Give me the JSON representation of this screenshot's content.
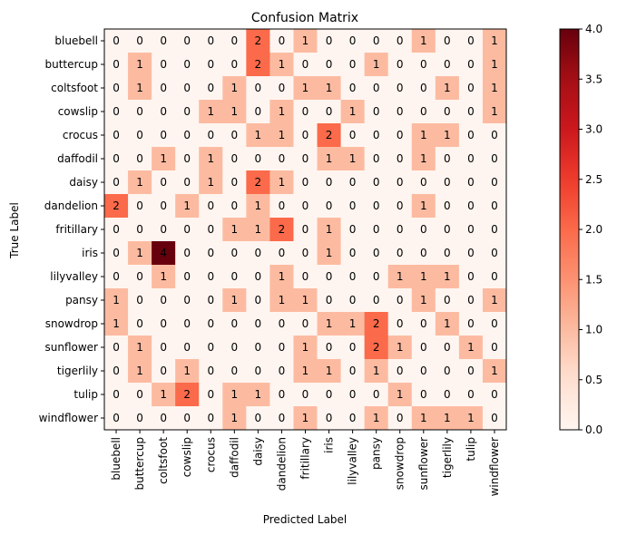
{
  "chart_data": {
    "type": "heatmap",
    "title": "Confusion Matrix",
    "xlabel": "Predicted Label",
    "ylabel": "True Label",
    "x_categories": [
      "bluebell",
      "buttercup",
      "coltsfoot",
      "cowslip",
      "crocus",
      "daffodil",
      "daisy",
      "dandelion",
      "fritillary",
      "iris",
      "lilyvalley",
      "pansy",
      "snowdrop",
      "sunflower",
      "tigerlily",
      "tulip",
      "windflower"
    ],
    "y_categories": [
      "bluebell",
      "buttercup",
      "coltsfoot",
      "cowslip",
      "crocus",
      "daffodil",
      "daisy",
      "dandelion",
      "fritillary",
      "iris",
      "lilyvalley",
      "pansy",
      "snowdrop",
      "sunflower",
      "tigerlily",
      "tulip",
      "windflower"
    ],
    "matrix": [
      [
        0,
        0,
        0,
        0,
        0,
        0,
        2,
        0,
        1,
        0,
        0,
        0,
        0,
        1,
        0,
        0,
        1
      ],
      [
        0,
        1,
        0,
        0,
        0,
        0,
        2,
        1,
        0,
        0,
        0,
        1,
        0,
        0,
        0,
        0,
        1
      ],
      [
        0,
        1,
        0,
        0,
        0,
        1,
        0,
        0,
        1,
        1,
        0,
        0,
        0,
        0,
        1,
        0,
        1
      ],
      [
        0,
        0,
        0,
        0,
        1,
        1,
        0,
        1,
        0,
        0,
        1,
        0,
        0,
        0,
        0,
        0,
        1
      ],
      [
        0,
        0,
        0,
        0,
        0,
        0,
        1,
        1,
        0,
        2,
        0,
        0,
        0,
        1,
        1,
        0,
        0
      ],
      [
        0,
        0,
        1,
        0,
        1,
        0,
        0,
        0,
        0,
        1,
        1,
        0,
        0,
        1,
        0,
        0,
        0
      ],
      [
        0,
        1,
        0,
        0,
        1,
        0,
        2,
        1,
        0,
        0,
        0,
        0,
        0,
        0,
        0,
        0,
        0
      ],
      [
        2,
        0,
        0,
        1,
        0,
        0,
        1,
        0,
        0,
        0,
        0,
        0,
        0,
        1,
        0,
        0,
        0
      ],
      [
        0,
        0,
        0,
        0,
        0,
        1,
        1,
        2,
        0,
        1,
        0,
        0,
        0,
        0,
        0,
        0,
        0
      ],
      [
        0,
        1,
        4,
        0,
        0,
        0,
        0,
        0,
        0,
        1,
        0,
        0,
        0,
        0,
        0,
        0,
        0
      ],
      [
        0,
        0,
        1,
        0,
        0,
        0,
        0,
        1,
        0,
        0,
        0,
        0,
        1,
        1,
        1,
        0,
        0
      ],
      [
        1,
        0,
        0,
        0,
        0,
        1,
        0,
        1,
        1,
        0,
        0,
        0,
        0,
        1,
        0,
        0,
        1
      ],
      [
        1,
        0,
        0,
        0,
        0,
        0,
        0,
        0,
        0,
        1,
        1,
        2,
        0,
        0,
        1,
        0,
        0
      ],
      [
        0,
        1,
        0,
        0,
        0,
        0,
        0,
        0,
        1,
        0,
        0,
        2,
        1,
        0,
        0,
        1,
        0
      ],
      [
        0,
        1,
        0,
        1,
        0,
        0,
        0,
        0,
        1,
        1,
        0,
        1,
        0,
        0,
        0,
        0,
        1
      ],
      [
        0,
        0,
        1,
        2,
        0,
        1,
        1,
        0,
        0,
        0,
        0,
        0,
        1,
        0,
        0,
        0,
        0
      ],
      [
        0,
        0,
        0,
        0,
        0,
        1,
        0,
        0,
        1,
        0,
        0,
        1,
        0,
        1,
        1,
        1,
        0
      ]
    ],
    "vmin": 0,
    "vmax": 4,
    "colormap": "Reds",
    "colorbar_ticks": [
      "0.0",
      "0.5",
      "1.0",
      "1.5",
      "2.0",
      "2.5",
      "3.0",
      "3.5",
      "4.0"
    ],
    "text_color_light": "#ffffff",
    "text_color_dark": "#000000"
  }
}
